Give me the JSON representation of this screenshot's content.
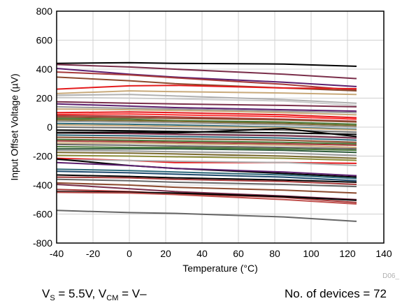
{
  "chart_data": {
    "type": "line",
    "xlabel": "Temperature (°C)",
    "ylabel": "Input Offset Voltage (µV)",
    "xlim": [
      -40,
      140
    ],
    "ylim": [
      -800,
      800
    ],
    "x_ticks": [
      "-40",
      "-20",
      "0",
      "20",
      "40",
      "60",
      "80",
      "100",
      "120",
      "140"
    ],
    "y_ticks": [
      "800",
      "600",
      "400",
      "200",
      "0",
      "-200",
      "-400",
      "-600",
      "-800"
    ],
    "grid": true,
    "figure_code": "D06_",
    "x": [
      -40,
      0,
      25,
      85,
      125
    ],
    "series": [
      {
        "color": "#000000",
        "values": [
          440,
          445,
          440,
          435,
          420
        ]
      },
      {
        "color": "#7a2e4a",
        "values": [
          432,
          415,
          400,
          365,
          335
        ]
      },
      {
        "color": "#5c1f6e",
        "values": [
          405,
          365,
          345,
          310,
          280
        ]
      },
      {
        "color": "#a63a3a",
        "values": [
          380,
          360,
          340,
          295,
          255
        ]
      },
      {
        "color": "#8c4a2e",
        "values": [
          345,
          320,
          300,
          270,
          250
        ]
      },
      {
        "color": "#e41a1c",
        "values": [
          262,
          285,
          288,
          270,
          265
        ]
      },
      {
        "color": "#c8a97a",
        "values": [
          232,
          250,
          245,
          235,
          225
        ]
      },
      {
        "color": "#b0b0b0",
        "values": [
          220,
          225,
          215,
          190,
          165
        ]
      },
      {
        "color": "#cccccc",
        "values": [
          205,
          200,
          195,
          180,
          150
        ]
      },
      {
        "color": "#7a2e4a",
        "values": [
          175,
          165,
          160,
          150,
          140
        ]
      },
      {
        "color": "#5c1f6e",
        "values": [
          160,
          145,
          135,
          120,
          110
        ]
      },
      {
        "color": "#999999",
        "values": [
          140,
          130,
          125,
          110,
          100
        ]
      },
      {
        "color": "#c8a97a",
        "values": [
          125,
          120,
          115,
          100,
          85
        ]
      },
      {
        "color": "#e41a1c",
        "values": [
          100,
          105,
          100,
          85,
          65
        ]
      },
      {
        "color": "#ff3030",
        "values": [
          88,
          90,
          85,
          72,
          55
        ]
      },
      {
        "color": "#a63a3a",
        "values": [
          80,
          75,
          70,
          55,
          40
        ]
      },
      {
        "color": "#8c4a2e",
        "values": [
          70,
          65,
          60,
          50,
          35
        ]
      },
      {
        "color": "#4a7a3a",
        "values": [
          60,
          55,
          45,
          35,
          20
        ]
      },
      {
        "color": "#7a6a2e",
        "values": [
          50,
          45,
          40,
          25,
          10
        ]
      },
      {
        "color": "#999999",
        "values": [
          40,
          35,
          30,
          15,
          0
        ]
      },
      {
        "color": "#2e6a7a",
        "values": [
          25,
          20,
          15,
          0,
          -15
        ]
      },
      {
        "color": "#c8a97a",
        "values": [
          15,
          10,
          5,
          -5,
          -20
        ]
      },
      {
        "color": "#6e6e6e",
        "values": [
          0,
          -5,
          -10,
          -20,
          -35
        ]
      },
      {
        "color": "#000000",
        "values": [
          -20,
          -25,
          -30,
          -40,
          -50
        ]
      },
      {
        "color": "#b0b0b0",
        "values": [
          -30,
          -35,
          -40,
          -55,
          -70
        ]
      },
      {
        "color": "#7a2e4a",
        "values": [
          -40,
          -45,
          -50,
          -60,
          -75
        ]
      },
      {
        "color": "#000000",
        "values": [
          -40,
          -35,
          -40,
          -10,
          -65
        ]
      },
      {
        "color": "#2e6a7a",
        "values": [
          -55,
          -60,
          -65,
          -75,
          -90
        ]
      },
      {
        "color": "#8c4a2e",
        "values": [
          -70,
          -75,
          -80,
          -90,
          -105
        ]
      },
      {
        "color": "#4a7a3a",
        "values": [
          -85,
          -90,
          -95,
          -105,
          -115
        ]
      },
      {
        "color": "#a63a3a",
        "values": [
          -95,
          -100,
          -105,
          -115,
          -125
        ]
      },
      {
        "color": "#c8a97a",
        "values": [
          -110,
          -110,
          -115,
          -125,
          -140
        ]
      },
      {
        "color": "#666666",
        "values": [
          -120,
          -125,
          -130,
          -140,
          -150
        ]
      },
      {
        "color": "#4a7a3a",
        "values": [
          -135,
          -140,
          -140,
          -150,
          -160
        ]
      },
      {
        "color": "#2e5a3a",
        "values": [
          -150,
          -150,
          -150,
          -160,
          -175
        ]
      },
      {
        "color": "#999999",
        "values": [
          -160,
          -165,
          -170,
          -180,
          -195
        ]
      },
      {
        "color": "#7a6a2e",
        "values": [
          -175,
          -180,
          -185,
          -200,
          -215
        ]
      },
      {
        "color": "#8c8c3a",
        "values": [
          -195,
          -200,
          -205,
          -215,
          -230
        ]
      },
      {
        "color": "#e41a1c",
        "values": [
          -215,
          -230,
          -245,
          -245,
          -250
        ]
      },
      {
        "color": "#b0b0b0",
        "values": [
          -225,
          -230,
          -235,
          -245,
          -265
        ]
      },
      {
        "color": "#000000",
        "values": [
          -220,
          -265,
          -285,
          -320,
          -345
        ]
      },
      {
        "color": "#5c1f6e",
        "values": [
          -245,
          -265,
          -285,
          -310,
          -335
        ]
      },
      {
        "color": "#2e6a7a",
        "values": [
          -290,
          -300,
          -310,
          -330,
          -355
        ]
      },
      {
        "color": "#1e4a6e",
        "values": [
          -305,
          -315,
          -325,
          -345,
          -370
        ]
      },
      {
        "color": "#000000",
        "values": [
          -330,
          -340,
          -350,
          -365,
          -380
        ]
      },
      {
        "color": "#a63a3a",
        "values": [
          -345,
          -350,
          -360,
          -375,
          -395
        ]
      },
      {
        "color": "#666666",
        "values": [
          -360,
          -370,
          -380,
          -395,
          -410
        ]
      },
      {
        "color": "#8c4a2e",
        "values": [
          -385,
          -400,
          -415,
          -435,
          -455
        ]
      },
      {
        "color": "#7a2e4a",
        "values": [
          -395,
          -425,
          -445,
          -475,
          -500
        ]
      },
      {
        "color": "#a63a3a",
        "values": [
          -430,
          -445,
          -460,
          -485,
          -520
        ]
      },
      {
        "color": "#000000",
        "values": [
          -445,
          -450,
          -455,
          -480,
          -505
        ]
      },
      {
        "color": "#c0504d",
        "values": [
          -450,
          -455,
          -465,
          -500,
          -530
        ]
      },
      {
        "color": "#666666",
        "values": [
          -575,
          -590,
          -595,
          -620,
          -650
        ]
      }
    ]
  },
  "footer": {
    "cond_vs": "V",
    "cond_vs_sub": "S",
    "cond_vs_value": " = 5.5V, V",
    "cond_vcm_sub": "CM",
    "cond_vcm_value": " = V–",
    "device_count": "No. of devices = 72"
  }
}
